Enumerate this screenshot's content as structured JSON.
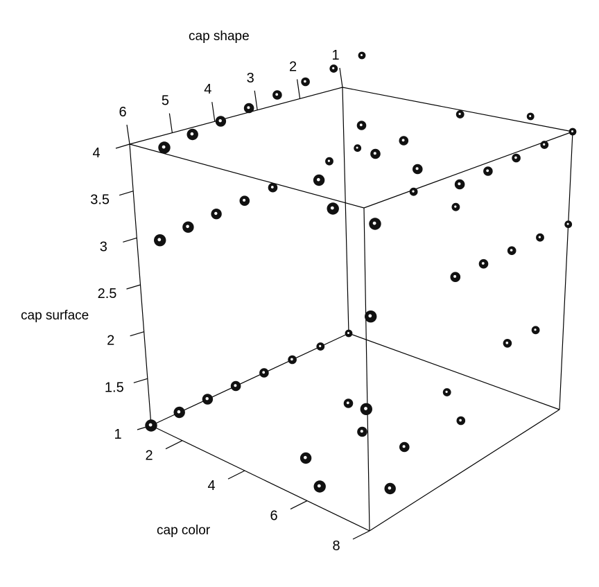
{
  "chart_data": {
    "type": "scatter3d",
    "title": "",
    "xlabel": "cap shape",
    "ylabel": "cap surface",
    "zlabel": "cap color",
    "axes": {
      "cap_shape": {
        "label": "cap shape",
        "ticks": [
          "1",
          "2",
          "3",
          "4",
          "5",
          "6"
        ]
      },
      "cap_surface": {
        "label": "cap surface",
        "ticks": [
          "1",
          "1.5",
          "2",
          "2.5",
          "3",
          "3.5",
          "4"
        ]
      },
      "cap_color": {
        "label": "cap color",
        "ticks": [
          "2",
          "4",
          "6",
          "8"
        ]
      }
    },
    "point_color": "#111111",
    "points": [
      {
        "shape": 1,
        "surface": 4,
        "color": 1
      },
      {
        "shape": 1,
        "surface": 4,
        "color": 2
      },
      {
        "shape": 1,
        "surface": 4,
        "color": 3
      },
      {
        "shape": 1,
        "surface": 4,
        "color": 4
      },
      {
        "shape": 1,
        "surface": 4,
        "color": 5
      },
      {
        "shape": 1,
        "surface": 4,
        "color": 8
      },
      {
        "shape": 2,
        "surface": 4,
        "color": 1
      },
      {
        "shape": 2,
        "surface": 4,
        "color": 5
      },
      {
        "shape": 2,
        "surface": 4,
        "color": 8
      },
      {
        "shape": 3,
        "surface": 4,
        "color": 2
      },
      {
        "shape": 3,
        "surface": 4,
        "color": 5
      },
      {
        "shape": 3,
        "surface": 4,
        "color": 7
      },
      {
        "shape": 6,
        "surface": 4,
        "color": 1
      },
      {
        "shape": 6,
        "surface": 4,
        "color": 2
      },
      {
        "shape": 6,
        "surface": 4,
        "color": 3
      },
      {
        "shape": 6,
        "surface": 4,
        "color": 4
      },
      {
        "shape": 6,
        "surface": 4,
        "color": 5
      },
      {
        "shape": 6,
        "surface": 4,
        "color": 6
      },
      {
        "shape": 6,
        "surface": 4,
        "color": 7
      },
      {
        "shape": 6,
        "surface": 4,
        "color": 8
      },
      {
        "shape": 3,
        "surface": 4,
        "color": 4
      },
      {
        "shape": 4,
        "surface": 4,
        "color": 4
      },
      {
        "shape": 1,
        "surface": 3,
        "color": 1
      },
      {
        "shape": 1,
        "surface": 3,
        "color": 2
      },
      {
        "shape": 1,
        "surface": 3,
        "color": 3
      },
      {
        "shape": 1,
        "surface": 3,
        "color": 4
      },
      {
        "shape": 1,
        "surface": 3,
        "color": 5
      },
      {
        "shape": 1,
        "surface": 3,
        "color": 8
      },
      {
        "shape": 6,
        "surface": 3,
        "color": 1
      },
      {
        "shape": 6,
        "surface": 3,
        "color": 2
      },
      {
        "shape": 6,
        "surface": 3,
        "color": 4
      },
      {
        "shape": 6,
        "surface": 3,
        "color": 5
      },
      {
        "shape": 6,
        "surface": 3,
        "color": 6
      },
      {
        "shape": 6,
        "surface": 3,
        "color": 7
      },
      {
        "shape": 6,
        "surface": 3,
        "color": 8
      },
      {
        "shape": 3,
        "surface": 3,
        "color": 2
      },
      {
        "shape": 4,
        "surface": 3,
        "color": 2
      },
      {
        "shape": 1,
        "surface": 2,
        "color": 2
      },
      {
        "shape": 1,
        "surface": 2,
        "color": 3
      },
      {
        "shape": 1,
        "surface": 2,
        "color": 8
      },
      {
        "shape": 6,
        "surface": 1,
        "color": 1
      },
      {
        "shape": 6,
        "surface": 1,
        "color": 2
      },
      {
        "shape": 6,
        "surface": 1,
        "color": 3
      },
      {
        "shape": 6,
        "surface": 1,
        "color": 4
      },
      {
        "shape": 6,
        "surface": 1,
        "color": 5
      },
      {
        "shape": 6,
        "surface": 1,
        "color": 6
      },
      {
        "shape": 6,
        "surface": 1,
        "color": 7
      },
      {
        "shape": 6,
        "surface": 1,
        "color": 8
      },
      {
        "shape": 3,
        "surface": 1,
        "color": 2
      },
      {
        "shape": 3,
        "surface": 1,
        "color": 5
      },
      {
        "shape": 3,
        "surface": 1,
        "color": 7
      },
      {
        "shape": 2,
        "surface": 1,
        "color": 5
      },
      {
        "shape": 1,
        "surface": 1,
        "color": 7
      },
      {
        "shape": 4,
        "surface": 1,
        "color": 4
      },
      {
        "shape": 2,
        "surface": 1,
        "color": 3
      },
      {
        "shape": 2,
        "surface": 1,
        "color": 8
      }
    ]
  }
}
